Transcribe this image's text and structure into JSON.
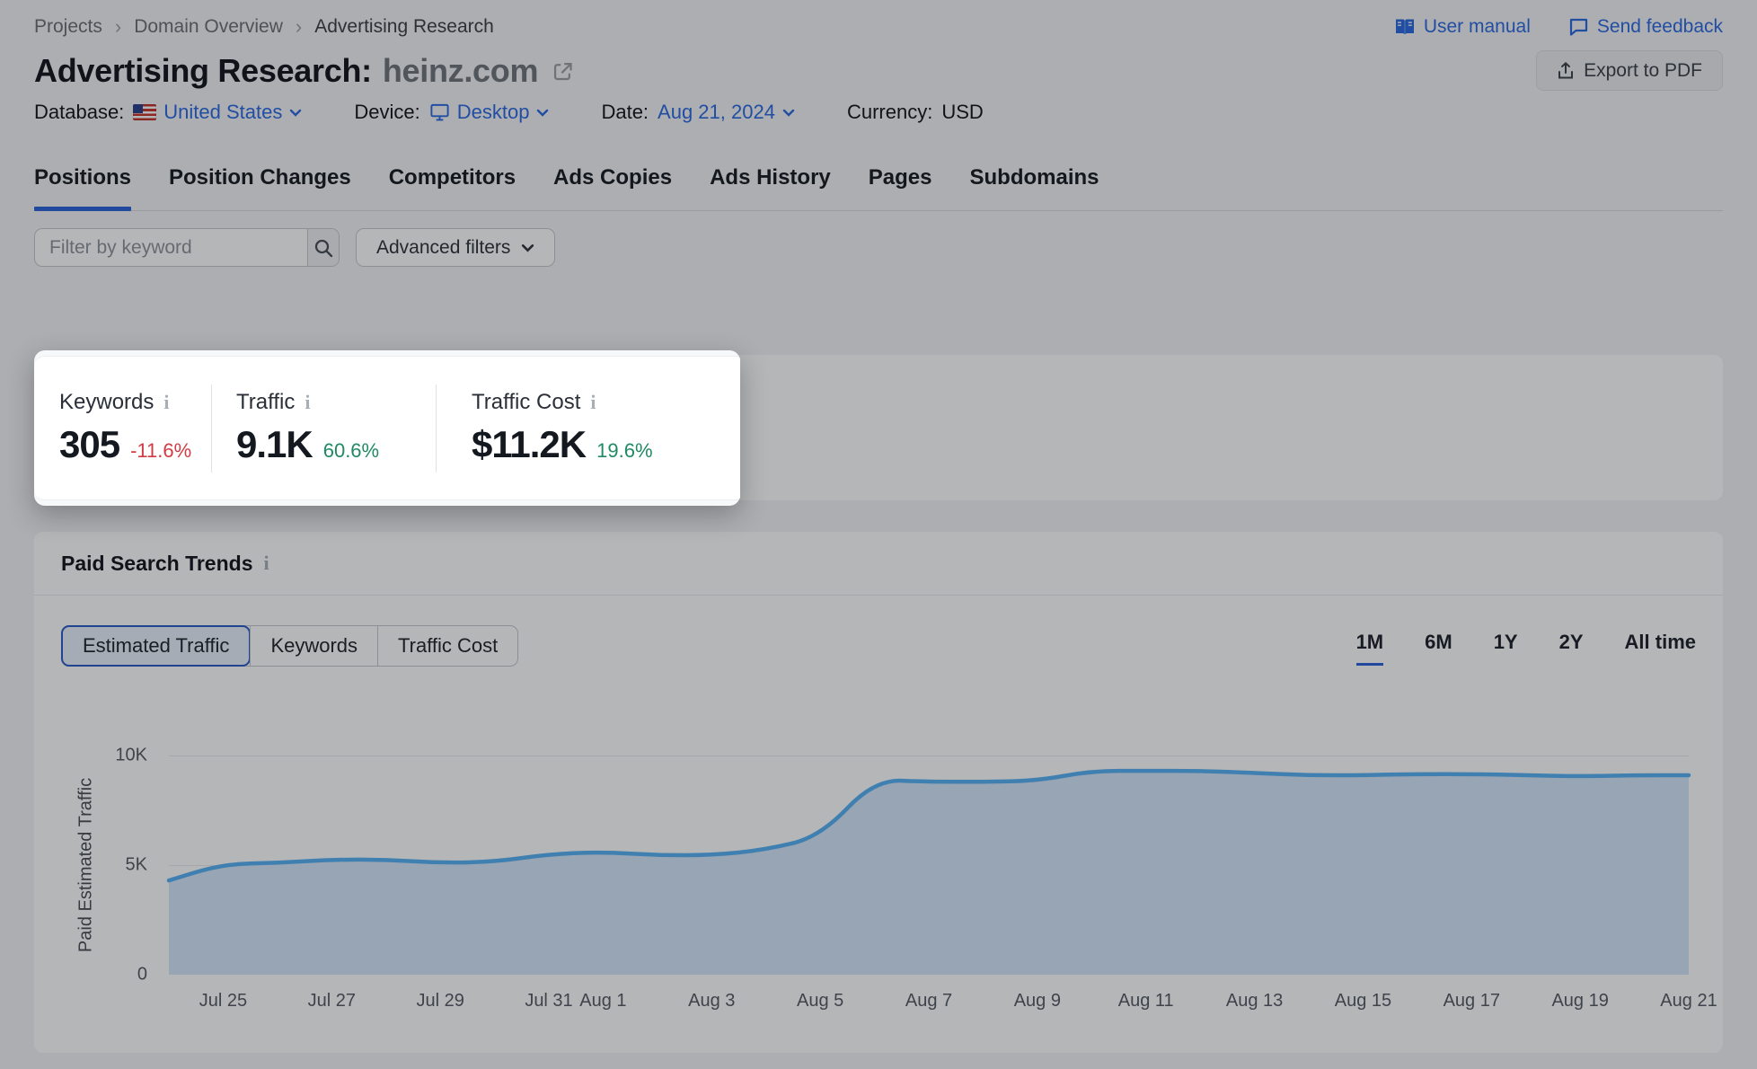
{
  "breadcrumb": {
    "items": [
      "Projects",
      "Domain Overview",
      "Advertising Research"
    ],
    "separator": "›"
  },
  "top_links": {
    "user_manual": "User manual",
    "send_feedback": "Send feedback"
  },
  "header": {
    "title_prefix": "Advertising Research:",
    "domain": "heinz.com",
    "export_pdf": "Export to PDF"
  },
  "params": {
    "database_label": "Database:",
    "database_value": "United States",
    "device_label": "Device:",
    "device_value": "Desktop",
    "date_label": "Date:",
    "date_value": "Aug 21, 2024",
    "currency_label": "Currency:",
    "currency_value": "USD"
  },
  "tabs": [
    {
      "label": "Positions",
      "active": true
    },
    {
      "label": "Position Changes",
      "active": false
    },
    {
      "label": "Competitors",
      "active": false
    },
    {
      "label": "Ads Copies",
      "active": false
    },
    {
      "label": "Ads History",
      "active": false
    },
    {
      "label": "Pages",
      "active": false
    },
    {
      "label": "Subdomains",
      "active": false
    }
  ],
  "filter": {
    "keyword_placeholder": "Filter by keyword",
    "advanced_filters": "Advanced filters"
  },
  "stats": [
    {
      "label": "Keywords",
      "value": "305",
      "delta": "-11.6%",
      "delta_color": "#d13b44"
    },
    {
      "label": "Traffic",
      "value": "9.1K",
      "delta": "60.6%",
      "delta_color": "#1f8a63"
    },
    {
      "label": "Traffic Cost",
      "value": "$11.2K",
      "delta": "19.6%",
      "delta_color": "#1f8a63"
    }
  ],
  "trends": {
    "title": "Paid Search Trends",
    "metric_tabs": [
      {
        "label": "Estimated Traffic",
        "active": true
      },
      {
        "label": "Keywords",
        "active": false
      },
      {
        "label": "Traffic Cost",
        "active": false
      }
    ],
    "ranges": [
      {
        "label": "1M",
        "active": true
      },
      {
        "label": "6M",
        "active": false
      },
      {
        "label": "1Y",
        "active": false
      },
      {
        "label": "2Y",
        "active": false
      },
      {
        "label": "All time",
        "active": false
      }
    ]
  },
  "chart_data": {
    "type": "area",
    "title": "Paid Search Trends — Estimated Traffic, 1M view",
    "ylabel": "Paid Estimated Traffic",
    "xlabel": "",
    "ylim": [
      0,
      10000
    ],
    "grid": true,
    "legend": false,
    "yticks": [
      {
        "label": "0",
        "value": 0
      },
      {
        "label": "5K",
        "value": 5000
      },
      {
        "label": "10K",
        "value": 10000
      }
    ],
    "x": [
      "Jul 24",
      "Jul 25",
      "Jul 26",
      "Jul 27",
      "Jul 28",
      "Jul 29",
      "Jul 30",
      "Jul 31",
      "Aug 1",
      "Aug 2",
      "Aug 3",
      "Aug 4",
      "Aug 5",
      "Aug 6",
      "Aug 7",
      "Aug 8",
      "Aug 9",
      "Aug 10",
      "Aug 11",
      "Aug 12",
      "Aug 13",
      "Aug 14",
      "Aug 15",
      "Aug 16",
      "Aug 17",
      "Aug 18",
      "Aug 19",
      "Aug 20",
      "Aug 21"
    ],
    "values": [
      4300,
      5050,
      5100,
      5250,
      5250,
      5100,
      5150,
      5500,
      5600,
      5450,
      5450,
      5700,
      6300,
      8900,
      8800,
      8800,
      8850,
      9300,
      9300,
      9300,
      9200,
      9100,
      9100,
      9150,
      9150,
      9100,
      9050,
      9100,
      9100
    ],
    "xticks": [
      {
        "label": "Jul 25",
        "index": 1
      },
      {
        "label": "Jul 27",
        "index": 3
      },
      {
        "label": "Jul 29",
        "index": 5
      },
      {
        "label": "Jul 31",
        "index": 7
      },
      {
        "label": "Aug 1",
        "index": 8
      },
      {
        "label": "Aug 3",
        "index": 10
      },
      {
        "label": "Aug 5",
        "index": 12
      },
      {
        "label": "Aug 7",
        "index": 14
      },
      {
        "label": "Aug 9",
        "index": 16
      },
      {
        "label": "Aug 11",
        "index": 18
      },
      {
        "label": "Aug 13",
        "index": 20
      },
      {
        "label": "Aug 15",
        "index": 22
      },
      {
        "label": "Aug 17",
        "index": 24
      },
      {
        "label": "Aug 19",
        "index": 26
      },
      {
        "label": "Aug 21",
        "index": 28
      }
    ],
    "line_color": "#58b2f6",
    "fill_color": "#d4e7fb"
  },
  "colors": {
    "accent_blue": "#2b6ae2",
    "positive_green": "#1f8a63",
    "negative_red": "#d13b44"
  }
}
